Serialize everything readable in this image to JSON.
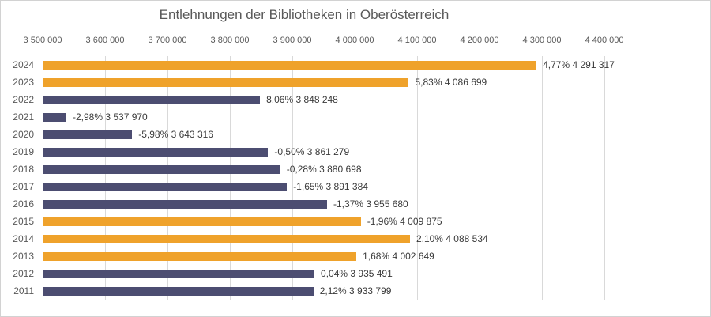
{
  "chart_data": {
    "type": "bar",
    "orientation": "horizontal",
    "title": "Entlehnungen der Bibliotheken in Oberösterreich",
    "categories": [
      "2024",
      "2023",
      "2022",
      "2021",
      "2020",
      "2019",
      "2018",
      "2017",
      "2016",
      "2015",
      "2014",
      "2013",
      "2012",
      "2011"
    ],
    "values": [
      4291317,
      4086699,
      3848248,
      3537970,
      3643316,
      3861279,
      3880698,
      3891384,
      3955680,
      4009875,
      4088534,
      4002649,
      3935491,
      3933799
    ],
    "percent_change": [
      "4,77%",
      "5,83%",
      "8,06%",
      "-2,98%",
      "-5,98%",
      "-0,50%",
      "-0,28%",
      "-1,65%",
      "-1,37%",
      "-1,96%",
      "2,10%",
      "1,68%",
      "0,04%",
      "2,12%"
    ],
    "data_labels": [
      "4,77% 4 291 317",
      "5,83% 4 086 699",
      "8,06% 3 848 248",
      "-2,98% 3 537 970",
      "-5,98% 3 643 316",
      "-0,50% 3 861 279",
      "-0,28% 3 880 698",
      "-1,65% 3 891 384",
      "-1,37% 3 955 680",
      "-1,96% 4 009 875",
      "2,10% 4 088 534",
      "1,68% 4 002 649",
      "0,04% 3 935 491",
      "2,12% 3 933 799"
    ],
    "bar_colors": [
      "#efa22b",
      "#efa22b",
      "#4c4d71",
      "#4c4d71",
      "#4c4d71",
      "#4c4d71",
      "#4c4d71",
      "#4c4d71",
      "#4c4d71",
      "#efa22b",
      "#efa22b",
      "#efa22b",
      "#4c4d71",
      "#4c4d71"
    ],
    "x_ticks": [
      "3 500 000",
      "3 600 000",
      "3 700 000",
      "3 800 000",
      "3 900 000",
      "4 000 000",
      "4 100 000",
      "4 200 000",
      "4 300 000",
      "4 400 000"
    ],
    "xlim": [
      3500000,
      4400000
    ],
    "grid": true,
    "tick_position": "top",
    "colors": {
      "accent_orange": "#efa22b",
      "accent_slate": "#4c4d71",
      "gridline": "#d9d9d9",
      "axis_text": "#595959",
      "label_text": "#3a3a3a"
    }
  }
}
